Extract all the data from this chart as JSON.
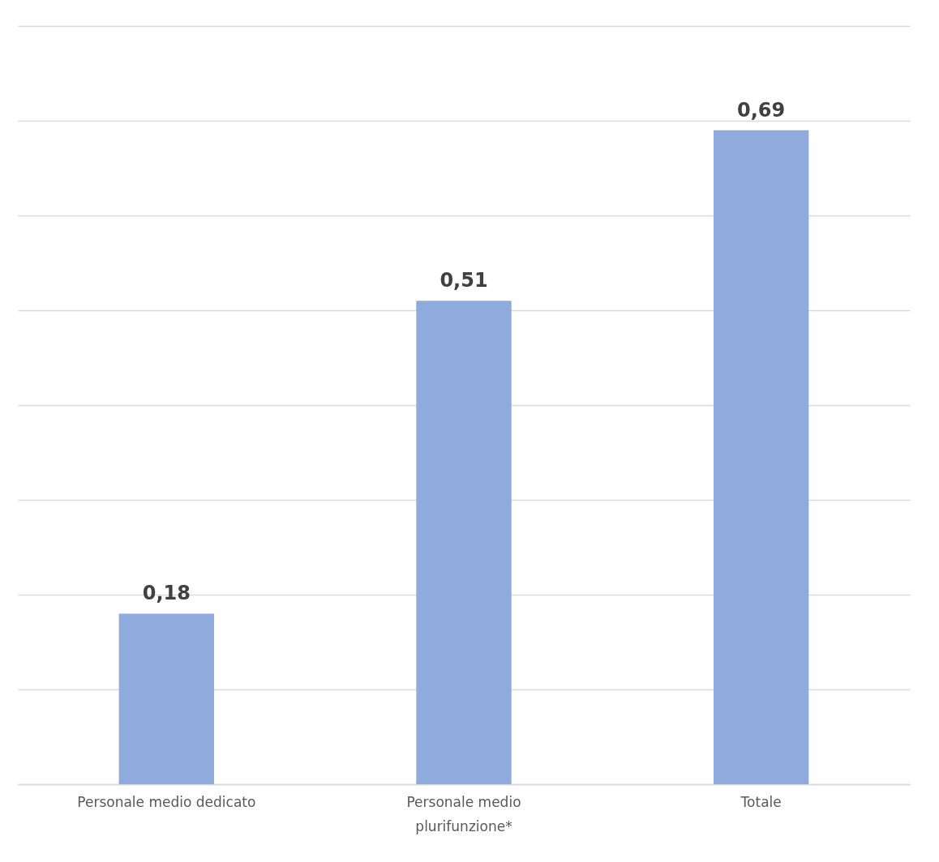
{
  "chart_data": {
    "type": "bar",
    "categories": [
      "Personale medio dedicato",
      "Personale medio plurifunzione*",
      "Totale"
    ],
    "values": [
      0.18,
      0.51,
      0.69
    ],
    "value_labels": [
      "0,18",
      "0,51",
      "0,69"
    ],
    "color": "#8faadc",
    "ylim": [
      0,
      0.8
    ],
    "yticks": [
      {
        "value": 0,
        "label": null
      },
      {
        "value": 0.1,
        "label": null
      },
      {
        "value": 0.2,
        "label": null
      },
      {
        "value": 0.3,
        "label": null
      },
      {
        "value": 0.4,
        "label": null
      },
      {
        "value": 0.5,
        "label": null
      },
      {
        "value": 0.6,
        "label": null
      },
      {
        "value": 0.7,
        "label": null
      },
      {
        "value": 0.8,
        "label": null
      }
    ],
    "grid": "y",
    "tick_labels": "x"
  }
}
